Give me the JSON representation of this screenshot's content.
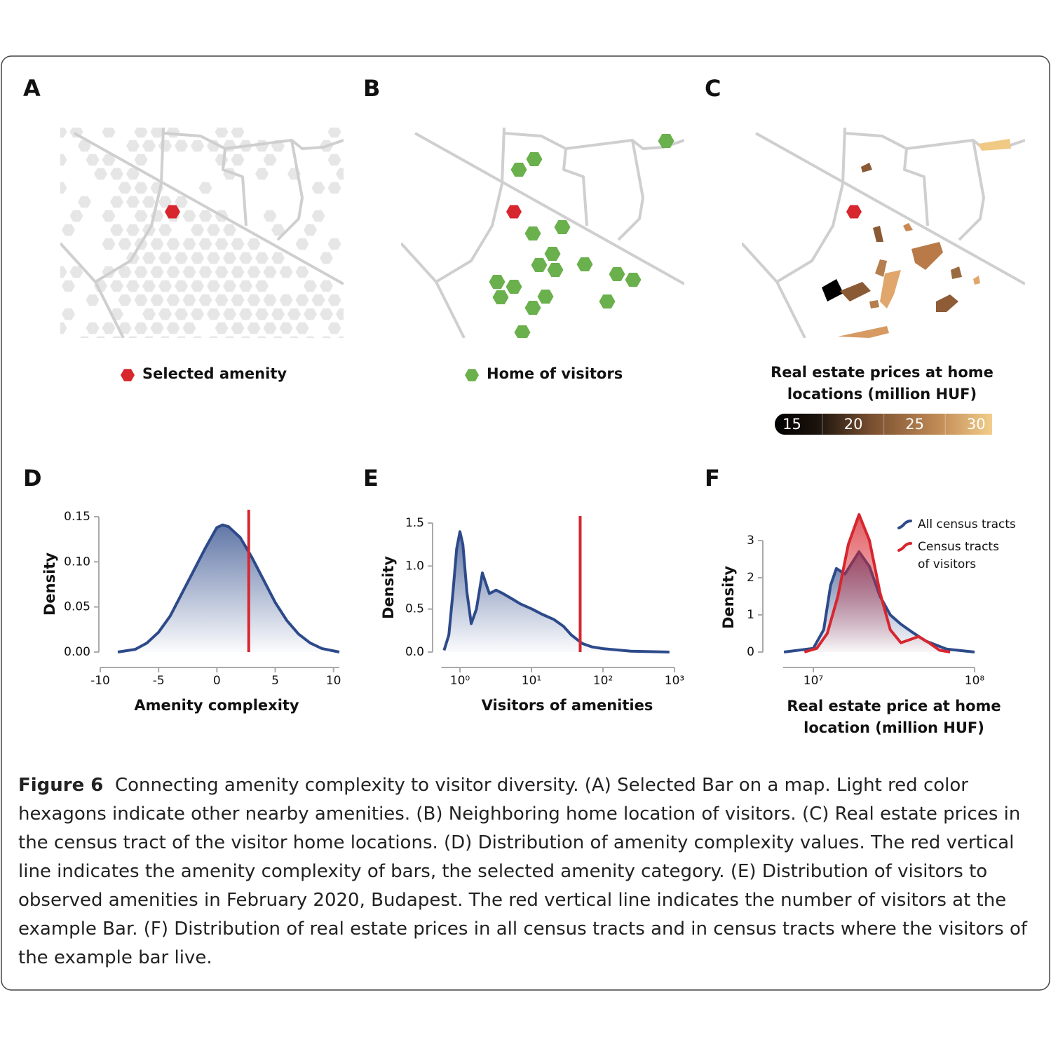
{
  "maps": [
    {
      "label": "A",
      "legend": "Selected amenity"
    },
    {
      "label": "B",
      "legend": "Home of visitors"
    },
    {
      "label": "C",
      "legend": "Real estate prices at home locations (million HUF)",
      "colorbar": {
        "ticks": [
          15,
          20,
          25,
          30
        ],
        "lim": [
          13.6,
          31.3
        ]
      }
    }
  ],
  "chart_data": [
    {
      "type": "area",
      "label": "D",
      "xlabel": "Amenity complexity",
      "ylabel": "Density",
      "x": [
        -8.5,
        -7,
        -6,
        -5,
        -4,
        -3,
        -2,
        -1,
        0,
        0.5,
        1,
        2,
        3,
        4,
        5,
        6,
        7,
        8,
        9,
        10.5
      ],
      "values": [
        0.0,
        0.003,
        0.01,
        0.022,
        0.04,
        0.065,
        0.09,
        0.115,
        0.138,
        0.141,
        0.139,
        0.127,
        0.105,
        0.08,
        0.055,
        0.035,
        0.02,
        0.01,
        0.004,
        0.0
      ],
      "color": "#2d4a8a",
      "xlim": [
        -10,
        10.5
      ],
      "xticks": [
        -10,
        -5,
        0,
        5,
        10
      ],
      "ylim": [
        0,
        0.15
      ],
      "yticks": [
        {
          "value": 0,
          "label": "0.00"
        },
        {
          "value": 0.05,
          "label": "0.05"
        },
        {
          "value": 0.1,
          "label": "0.10"
        },
        {
          "value": 0.15,
          "label": "0.15"
        }
      ],
      "marker_x": 2.73,
      "marker_color": "#d7262e"
    },
    {
      "type": "area",
      "label": "E",
      "xlabel": "Visitors of amenities",
      "ylabel": "Density",
      "log_x": true,
      "x": [
        0.6,
        0.7,
        0.8,
        0.9,
        1.0,
        1.1,
        1.25,
        1.44,
        1.7,
        2.06,
        2.3,
        2.58,
        3.2,
        4.0,
        5.3,
        7,
        10.2,
        14,
        20.5,
        28,
        36,
        51,
        70,
        100,
        245,
        850
      ],
      "values": [
        0.02,
        0.2,
        0.7,
        1.2,
        1.4,
        1.25,
        0.7,
        0.33,
        0.5,
        0.92,
        0.8,
        0.68,
        0.72,
        0.68,
        0.62,
        0.56,
        0.5,
        0.44,
        0.38,
        0.3,
        0.2,
        0.1,
        0.06,
        0.04,
        0.01,
        0.0
      ],
      "color": "#2d4a8a",
      "xlim": [
        0.55,
        1000
      ],
      "xticks": [
        {
          "value": 1,
          "label": "10⁰"
        },
        {
          "value": 10,
          "label": "10¹"
        },
        {
          "value": 100,
          "label": "10²"
        },
        {
          "value": 1000,
          "label": "10³"
        }
      ],
      "ylim": [
        0,
        1.5
      ],
      "yticks": [
        {
          "value": 0,
          "label": "0.0"
        },
        0.5,
        {
          "value": 1,
          "label": "1.0"
        },
        1.5
      ],
      "marker_x": 48,
      "marker_color": "#d7262e"
    },
    {
      "type": "area",
      "label": "F",
      "xlabel": "Real estate price at home location (million HUF)",
      "ylabel": "Density",
      "log_x": true,
      "xlim": [
        6500000,
        100000000
      ],
      "xticks": [
        {
          "value": 10000000,
          "label": "10⁷"
        },
        {
          "value": 100000000,
          "label": "10⁸"
        }
      ],
      "ylim": [
        0,
        3
      ],
      "yticks": [
        0,
        1,
        2,
        3
      ],
      "legend": "top-right",
      "series": [
        {
          "name": "All census tracts",
          "color": "#2d4a8a",
          "x": [
            6570000,
            10000000,
            11600000,
            12800000,
            13900000,
            15700000,
            19200000,
            22300000,
            25900000,
            30000000,
            34900000,
            40600000,
            49600000,
            67000000,
            100000000
          ],
          "values": [
            0,
            0.1,
            0.6,
            1.8,
            2.25,
            2.1,
            2.7,
            2.3,
            1.5,
            1.0,
            0.75,
            0.55,
            0.3,
            0.08,
            0.0
          ]
        },
        {
          "name": "Census tracts of visitors",
          "color": "#d7262e",
          "x": [
            8800000,
            10500000,
            12200000,
            14200000,
            16500000,
            19200000,
            22300000,
            25900000,
            30000000,
            34900000,
            40600000,
            44900000,
            52100000,
            60600000,
            70500000
          ],
          "values": [
            0,
            0.1,
            0.5,
            1.5,
            2.9,
            3.7,
            3.0,
            1.6,
            0.6,
            0.25,
            0.35,
            0.42,
            0.25,
            0.05,
            0.0
          ]
        }
      ]
    }
  ],
  "caption": {
    "label": "Figure 6",
    "text": "Connecting amenity complexity to visitor diversity. (A) Selected Bar on a map. Light red color hexagons indicate other nearby amenities. (B) Neighboring home location of visitors. (C) Real estate prices in the census tract of the visitor home locations. (D) Distribution of amenity complexity values. The red vertical line indicates the amenity complexity of bars, the selected amenity category. (E) Distribution of visitors to observed amenities in February 2020, Budapest. The red vertical line indicates the number of visitors at the example Bar. (F) Distribution of real estate prices in all census tracts and in census tracts where the visitors of the example bar live."
  }
}
